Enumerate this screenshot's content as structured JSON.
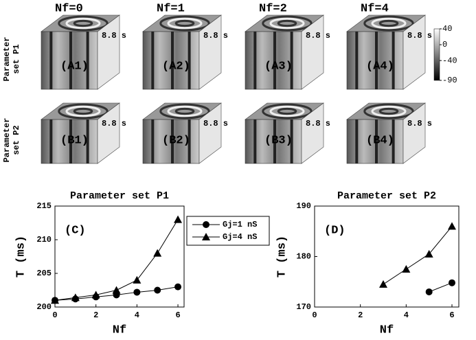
{
  "panels": {
    "columns": [
      "Nf=0",
      "Nf=1",
      "Nf=2",
      "Nf=4"
    ],
    "rows": [
      [
        "Parameter",
        "set P1"
      ],
      [
        "Parameter",
        "set P2"
      ]
    ],
    "labels": [
      [
        "(A1)",
        "(A2)",
        "(A3)",
        "(A4)"
      ],
      [
        "(B1)",
        "(B2)",
        "(B3)",
        "(B4)"
      ]
    ],
    "time_label": "8.8 s",
    "colorbar": {
      "lim": [
        -90,
        40
      ],
      "ticks": [
        40,
        0,
        -40,
        -90
      ]
    }
  },
  "chart_data": [
    {
      "type": "line",
      "title": "Parameter set P1",
      "panel_label": "(C)",
      "x_label": "Nf",
      "y_label": "T (ms)",
      "x": [
        0,
        1,
        2,
        3,
        4,
        5,
        6
      ],
      "xlim": [
        0,
        6.3
      ],
      "xticks": [
        0,
        2,
        4,
        6
      ],
      "ylim": [
        200,
        215
      ],
      "yticks": [
        200,
        205,
        210,
        215
      ],
      "legend": true,
      "series": [
        {
          "name": "Gj=1 nS",
          "marker": "circle",
          "color": "#000000",
          "values": [
            201,
            201.2,
            201.5,
            201.8,
            202.2,
            202.5,
            203
          ]
        },
        {
          "name": "Gj=4 nS",
          "marker": "triangle",
          "color": "#000000",
          "values": [
            201,
            201.4,
            201.8,
            202.5,
            204,
            208,
            213
          ]
        }
      ]
    },
    {
      "type": "line",
      "title": "Parameter set P2",
      "panel_label": "(D)",
      "x_label": "Nf",
      "y_label": "T (ms)",
      "x": [
        0,
        1,
        2,
        3,
        4,
        5,
        6
      ],
      "xlim": [
        0,
        6.3
      ],
      "xticks": [
        0,
        2,
        4,
        6
      ],
      "ylim": [
        170,
        190
      ],
      "yticks": [
        170,
        180,
        190
      ],
      "legend": false,
      "series": [
        {
          "marker": "circle",
          "color": "#000000",
          "values": [
            null,
            null,
            null,
            null,
            null,
            173,
            174.8
          ]
        },
        {
          "marker": "triangle",
          "color": "#000000",
          "values": [
            null,
            null,
            null,
            174.5,
            177.5,
            180.5,
            186
          ]
        }
      ]
    }
  ]
}
